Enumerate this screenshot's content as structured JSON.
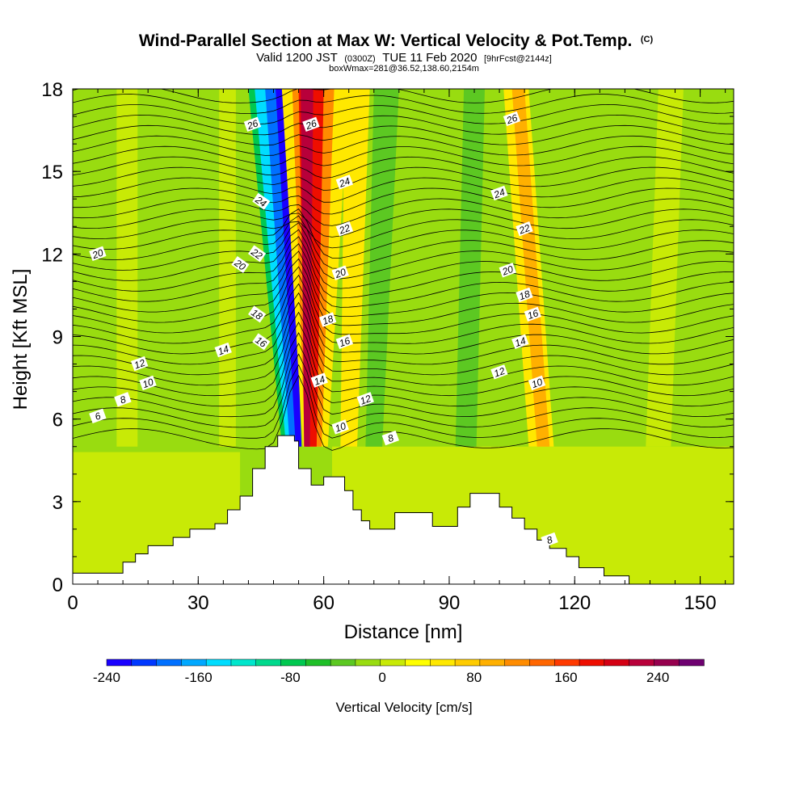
{
  "chart_data": {
    "type": "heatmap",
    "title": "Wind-Parallel Section at Max W: Vertical Velocity & Pot.Temp.",
    "title_suffix": "(C)",
    "subtitle_prefix": "Valid 1200 JST",
    "subtitle_utc": "(0300Z)",
    "subtitle_date": "TUE 11 Feb 2020",
    "subtitle_fcst": "[9hrFcst@2144z]",
    "subtitle2": "boxWmax=281@36.52,138.60,2154m",
    "xlabel": "Distance [nm]",
    "ylabel": "Height [Kft MSL]",
    "xlim": [
      0,
      158
    ],
    "ylim": [
      0,
      18
    ],
    "xticks": [
      "0",
      "30",
      "60",
      "90",
      "120",
      "150"
    ],
    "yticks": [
      "0",
      "3",
      "6",
      "9",
      "12",
      "15",
      "18"
    ],
    "colorbar": {
      "title": "Vertical Velocity [cm/s]",
      "tick_labels": [
        "-240",
        "-160",
        "-80",
        "0",
        "80",
        "160",
        "240"
      ],
      "tick_values": [
        -240,
        -160,
        -80,
        0,
        80,
        160,
        240
      ],
      "range": [
        -240,
        280
      ],
      "colors": [
        "#1a00ff",
        "#0038ff",
        "#0070ff",
        "#00a8ff",
        "#00ddff",
        "#00e6cc",
        "#00d98c",
        "#00c850",
        "#1fbf28",
        "#5cc822",
        "#99dc10",
        "#c8ea06",
        "#ffff00",
        "#ffe800",
        "#ffcc00",
        "#ffb000",
        "#ff8c00",
        "#ff6600",
        "#ff3a00",
        "#ee0e00",
        "#d40014",
        "#b8003a",
        "#96004e",
        "#6e0070"
      ]
    },
    "contour_labels": [
      "20",
      "26",
      "24",
      "22",
      "20",
      "18",
      "16",
      "14",
      "12",
      "10",
      "8",
      "6",
      "26",
      "24",
      "22",
      "20",
      "18",
      "16",
      "14",
      "12",
      "10",
      "8",
      "26",
      "24",
      "22",
      "20",
      "18",
      "16",
      "14",
      "12",
      "10",
      "8"
    ]
  }
}
